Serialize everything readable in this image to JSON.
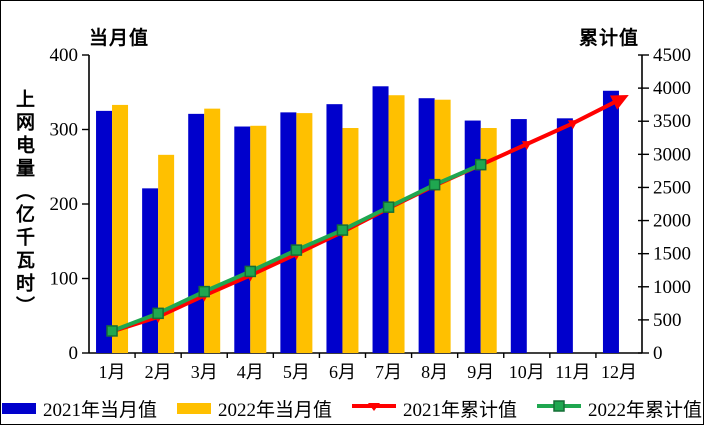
{
  "chart_data": {
    "type": "combo-bar-line",
    "categories": [
      "1月",
      "2月",
      "3月",
      "4月",
      "5月",
      "6月",
      "7月",
      "8月",
      "9月",
      "10月",
      "11月",
      "12月"
    ],
    "left_axis": {
      "header": "当月值",
      "title": "上网电量（亿千瓦时）",
      "ticks": [
        400,
        300,
        200,
        100,
        0
      ],
      "min": 0,
      "max": 400
    },
    "right_axis": {
      "header": "累计值",
      "ticks": [
        4500,
        4000,
        3500,
        3000,
        2500,
        2000,
        1500,
        1000,
        500,
        0
      ],
      "min": 0,
      "max": 4500
    },
    "grid": "off",
    "legend_position": "bottom",
    "series": [
      {
        "name": "2021年当月值",
        "type": "bar",
        "axis": "left",
        "color": "#0000CC",
        "values": [
          325,
          221,
          321,
          304,
          323,
          334,
          358,
          342,
          312,
          314,
          315,
          352
        ]
      },
      {
        "name": "2022年当月值",
        "type": "bar",
        "axis": "left",
        "color": "#FFC000",
        "values": [
          333,
          266,
          328,
          305,
          322,
          302,
          346,
          340,
          302
        ]
      },
      {
        "name": "2021年累计值",
        "type": "line",
        "axis": "right",
        "color": "#FF0000",
        "marker": "triangle",
        "values": [
          325,
          546,
          867,
          1171,
          1494,
          1828,
          2186,
          2528,
          2840,
          3154,
          3469,
          3821
        ]
      },
      {
        "name": "2022年累计值",
        "type": "line",
        "axis": "right",
        "color": "#1FA750",
        "marker": "square",
        "marker_border": "#156F36",
        "values": [
          333,
          599,
          927,
          1232,
          1554,
          1856,
          2202,
          2542,
          2844
        ]
      }
    ]
  }
}
